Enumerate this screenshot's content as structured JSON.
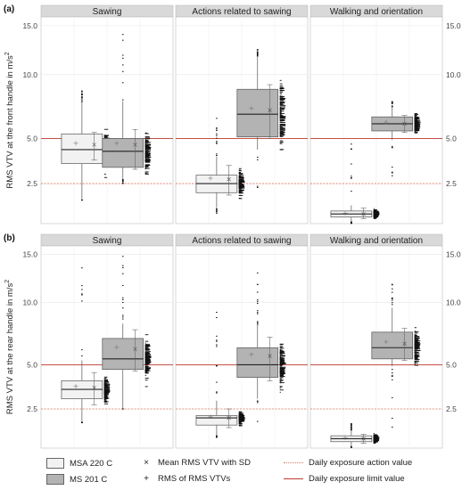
{
  "chart_data": {
    "type": "boxplot",
    "y_axis_label": "RMS VTV at the front handle in",
    "y_axis_label_b": "RMS VTV at the rear handle in",
    "y_unit_base": "m/s",
    "y_unit_exp": "2",
    "y_ticks": [
      "2.5",
      "5.0",
      "10.0",
      "15.0"
    ],
    "y_tick_values": [
      2.5,
      5.0,
      10.0,
      15.0
    ],
    "y_scale": "sqrt",
    "ylim": [
      1.0,
      16.0
    ],
    "reference_lines": [
      {
        "name": "Daily exposure action value",
        "value": 2.5,
        "color": "#e07a5f",
        "style": "dotted"
      },
      {
        "name": "Daily exposure limit value",
        "value": 5.0,
        "color": "#c0392b",
        "style": "solid"
      }
    ],
    "facets": [
      "Sawing",
      "Actions related to sawing",
      "Walking and orientation"
    ],
    "series": [
      {
        "name": "MSA 220 C",
        "fill": "#f2f2f2"
      },
      {
        "name": "MS 201 C",
        "fill": "#b3b3b3"
      }
    ],
    "panels": [
      {
        "tag": "(a)",
        "groups": [
          [
            {
              "series": 0,
              "whisker_low": 1.8,
              "q1": 3.5,
              "median": 4.3,
              "q3": 5.3,
              "whisker_high": 7.6,
              "mean": 4.6,
              "sd_low": 3.7,
              "sd_high": 5.4,
              "out_low": 1.8,
              "out_high": 8.6
            },
            {
              "series": 1,
              "whisker_low": 2.7,
              "q1": 3.3,
              "median": 4.2,
              "q3": 5.0,
              "whisker_high": 7.7,
              "mean": 4.6,
              "sd_low": 3.2,
              "sd_high": 5.6,
              "out_low": 2.5,
              "out_high": 15.0
            }
          ],
          [
            {
              "series": 0,
              "whisker_low": 1.5,
              "q1": 2.1,
              "median": 2.5,
              "q3": 2.9,
              "whisker_high": 3.9,
              "mean": 2.7,
              "sd_low": 2.0,
              "sd_high": 3.4,
              "out_low": 1.3,
              "out_high": 7.3
            },
            {
              "series": 1,
              "whisker_low": 4.3,
              "q1": 5.1,
              "median": 6.7,
              "q3": 8.7,
              "whisker_high": 11.7,
              "mean": 7.0,
              "sd_low": 5.0,
              "sd_high": 9.1,
              "out_low": 1.2,
              "out_high": 12.5
            }
          ],
          [
            {
              "series": 0,
              "whisker_low": 1.05,
              "q1": 1.2,
              "median": 1.3,
              "q3": 1.4,
              "whisker_high": 1.6,
              "mean": 1.3,
              "sd_low": 1.15,
              "sd_high": 1.5,
              "out_low": 1.0,
              "out_high": 5.0
            },
            {
              "series": 1,
              "whisker_low": 4.9,
              "q1": 5.5,
              "median": 6.0,
              "q3": 6.5,
              "whisker_high": 7.2,
              "mean": 6.0,
              "sd_low": 5.4,
              "sd_high": 6.6,
              "out_low": 1.7,
              "out_high": 7.8
            }
          ]
        ]
      },
      {
        "tag": "(b)",
        "groups": [
          [
            {
              "series": 0,
              "whisker_low": 1.9,
              "q1": 3.0,
              "median": 3.5,
              "q3": 4.0,
              "whisker_high": 5.3,
              "mean": 3.6,
              "sd_low": 2.7,
              "sd_high": 4.5,
              "out_low": 1.9,
              "out_high": 14.0
            },
            {
              "series": 1,
              "whisker_low": 2.5,
              "q1": 4.7,
              "median": 5.4,
              "q3": 6.9,
              "whisker_high": 8.1,
              "mean": 6.1,
              "sd_low": 4.6,
              "sd_high": 7.6,
              "out_low": 2.5,
              "out_high": 15.3
            }
          ],
          [
            {
              "series": 0,
              "whisker_low": 1.4,
              "q1": 1.8,
              "median": 2.1,
              "q3": 2.2,
              "whisker_high": 2.9,
              "mean": 2.1,
              "sd_low": 1.7,
              "sd_high": 2.5,
              "out_low": 1.3,
              "out_high": 9.5
            },
            {
              "series": 1,
              "whisker_low": 3.0,
              "q1": 4.2,
              "median": 5.0,
              "q3": 6.2,
              "whisker_high": 7.9,
              "mean": 5.6,
              "sd_low": 4.0,
              "sd_high": 7.0,
              "out_low": 1.2,
              "out_high": 13.0
            }
          ],
          [
            {
              "series": 0,
              "whisker_low": 1.05,
              "q1": 1.2,
              "median": 1.3,
              "q3": 1.4,
              "whisker_high": 1.6,
              "mean": 1.3,
              "sd_low": 1.15,
              "sd_high": 1.45,
              "out_low": 1.0,
              "out_high": 1.9
            },
            {
              "series": 1,
              "whisker_low": 4.9,
              "q1": 5.4,
              "median": 6.2,
              "q3": 7.4,
              "whisker_high": 9.5,
              "mean": 6.5,
              "sd_low": 5.3,
              "sd_high": 7.7,
              "out_low": 1.5,
              "out_high": 12.3
            }
          ]
        ]
      }
    ],
    "legend": {
      "series_labels": [
        "MSA 220 C",
        "MS 201 C"
      ],
      "mean_label": "Mean RMS VTV with SD",
      "mean_symbol": "×",
      "points_label": "RMS of RMS VTVs",
      "points_symbol": "+",
      "action_label": "Daily exposure action value",
      "limit_label": "Daily exposure limit value"
    }
  }
}
